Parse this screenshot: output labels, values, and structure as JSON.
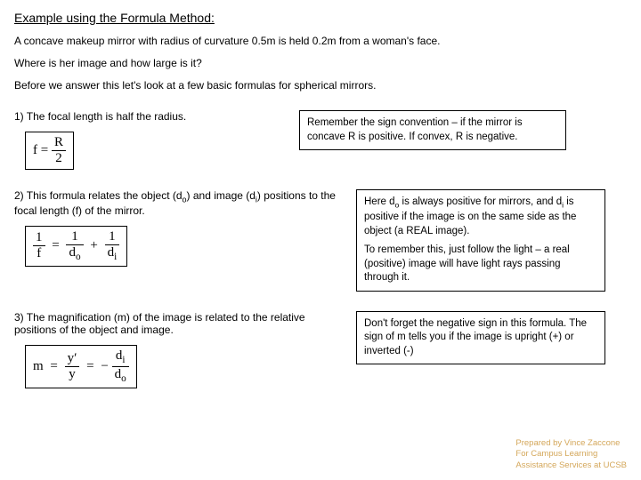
{
  "title": "Example using the Formula Method:",
  "intro1": "A concave makeup mirror with radius of curvature 0.5m is held 0.2m from a woman's face.",
  "intro2": "Where is her image and how large is it?",
  "intro3": "Before we answer this let's look at a few basic formulas for spherical mirrors.",
  "item1": {
    "text": "1)  The focal length is half the radius.",
    "note": "Remember the sign convention – if the mirror is concave R is positive.  If convex, R is negative."
  },
  "item2": {
    "text_a": "2)  This formula relates the object (d",
    "text_b": ") and image (d",
    "text_c": ") positions to the focal length (f) of the mirror.",
    "note_p1a": "Here d",
    "note_p1b": " is always positive for mirrors, and d",
    "note_p1c": " is positive if the image is on the same side as the object (a REAL image).",
    "note_p2": "To remember this, just follow the light – a real (positive) image will have light rays passing through it."
  },
  "item3": {
    "text": "3)  The magnification (m) of the image is related to the relative positions of the object and image.",
    "note": "Don't forget the negative sign in this formula.  The sign of m tells you if the image is upright (+) or inverted (-)"
  },
  "footer": {
    "line1": "Prepared by Vince Zaccone",
    "line2": "For Campus Learning",
    "line3": "Assistance Services at UCSB"
  },
  "formula_symbols": {
    "f": "f",
    "eq": "=",
    "plus": "+",
    "minus": "−",
    "R": "R",
    "two": "2",
    "one": "1",
    "do": "d",
    "di": "d",
    "o": "o",
    "i": "i",
    "m": "m",
    "yprime": "y′",
    "y": "y"
  },
  "colors": {
    "text": "#000000",
    "footer": "#d4a75a",
    "bg": "#ffffff"
  }
}
